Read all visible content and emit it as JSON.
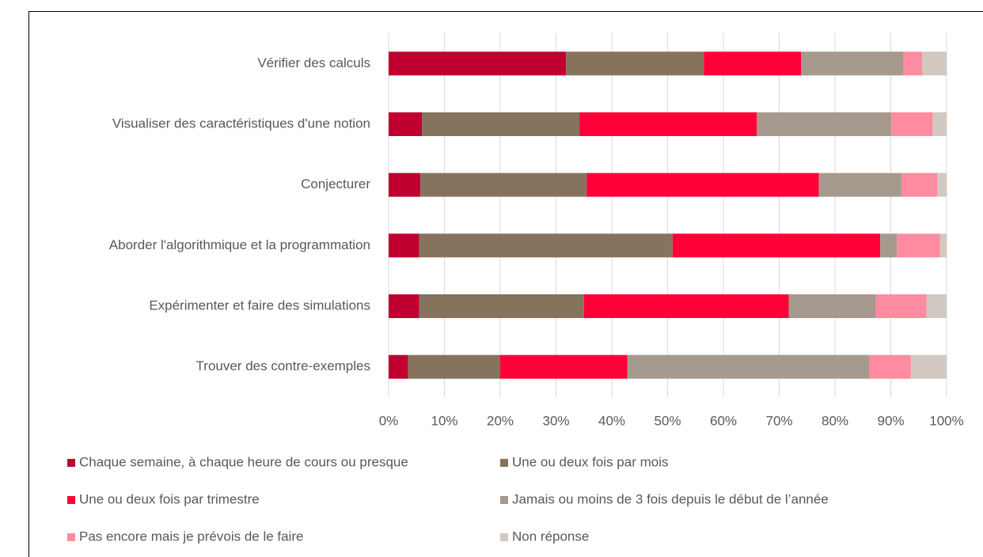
{
  "chart_data": {
    "type": "bar",
    "orientation": "horizontal",
    "stacked": true,
    "categories": [
      "Vérifier des calculs",
      "Visualiser des caractéristiques d'une notion",
      "Conjecturer",
      "Aborder l'algorithmique et la programmation",
      "Expérimenter et faire des simulations",
      "Trouver des contre-exemples"
    ],
    "series": [
      {
        "name": "Chaque semaine, à chaque heure de cours ou presque",
        "color": "#c00030",
        "values": [
          31.8,
          6.0,
          5.7,
          5.5,
          5.5,
          3.5
        ]
      },
      {
        "name": "Une ou deux fois par mois",
        "color": "#85735e",
        "values": [
          24.7,
          28.2,
          29.8,
          45.4,
          29.5,
          16.5
        ]
      },
      {
        "name": "Une ou deux fois par trimestre",
        "color": "#ff0038",
        "values": [
          17.4,
          31.8,
          41.6,
          37.2,
          36.7,
          22.8
        ]
      },
      {
        "name": "Jamais ou moins de 3 fois depuis le début de l’année",
        "color": "#a69a8f",
        "values": [
          18.3,
          24.1,
          14.8,
          3.0,
          15.6,
          43.4
        ]
      },
      {
        "name": "Pas encore mais je prévois de le faire",
        "color": "#ff8ba0",
        "values": [
          3.4,
          7.4,
          6.4,
          7.7,
          9.1,
          7.4
        ]
      },
      {
        "name": "Non réponse",
        "color": "#d0c8c1",
        "values": [
          4.4,
          2.5,
          1.7,
          1.2,
          3.6,
          6.4
        ]
      }
    ],
    "xlim": [
      0,
      100
    ],
    "xticks": [
      {
        "value": 0,
        "label": "0%"
      },
      {
        "value": 10,
        "label": "10%"
      },
      {
        "value": 20,
        "label": "20%"
      },
      {
        "value": 30,
        "label": "30%"
      },
      {
        "value": 40,
        "label": "40%"
      },
      {
        "value": 50,
        "label": "50%"
      },
      {
        "value": 60,
        "label": "60%"
      },
      {
        "value": 70,
        "label": "70%"
      },
      {
        "value": 80,
        "label": "80%"
      },
      {
        "value": 90,
        "label": "90%"
      },
      {
        "value": 100,
        "label": "100%"
      }
    ],
    "grid": true,
    "legend": "bottom"
  }
}
